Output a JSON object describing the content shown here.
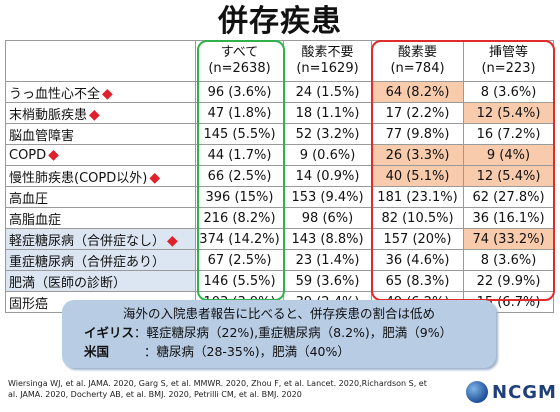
{
  "title": "併存疾患",
  "table": {
    "headers": [
      {
        "label": "すべて",
        "n": "(n=2638)"
      },
      {
        "label": "酸素不要",
        "n": "(n=1629)"
      },
      {
        "label": "酸素要",
        "n": "(n=784)"
      },
      {
        "label": "挿管等",
        "n": "(n=223)"
      }
    ],
    "rows": [
      {
        "label": "うっ血性心不全",
        "cells": [
          "96 (3.6%)",
          "24 (1.5%)",
          "64 (8.2%)",
          "8 (3.6%)"
        ]
      },
      {
        "label": "末梢動脈疾患",
        "cells": [
          "47 (1.8%)",
          "18 (1.1%)",
          "17 (2.2%)",
          "12 (5.4%)"
        ]
      },
      {
        "label": "脳血管障害",
        "cells": [
          "145 (5.5%)",
          "52 (3.2%)",
          "77 (9.8%)",
          "16 (7.2%)"
        ]
      },
      {
        "label": "COPD",
        "cells": [
          "44 (1.7%)",
          "9 (0.6%)",
          "26 (3.3%)",
          "9 (4%)"
        ]
      },
      {
        "label": "慢性肺疾患(COPD以外)",
        "cells": [
          "66 (2.5%)",
          "14 (0.9%)",
          "40 (5.1%)",
          "12 (5.4%)"
        ]
      },
      {
        "label": "高血圧",
        "cells": [
          "396 (15%)",
          "153 (9.4%)",
          "181 (23.1%)",
          "62 (27.8%)"
        ]
      },
      {
        "label": "高脂血症",
        "cells": [
          "216 (8.2%)",
          "98 (6%)",
          "82 (10.5%)",
          "36 (16.1%)"
        ]
      },
      {
        "label": "軽症糖尿病（合併症なし）",
        "cells": [
          "374 (14.2%)",
          "143 (8.8%)",
          "157 (20%)",
          "74 (33.2%)"
        ]
      },
      {
        "label": "重症糖尿病（合併症あり）",
        "cells": [
          "67 (2.5%)",
          "23 (1.4%)",
          "36 (4.6%)",
          "8 (3.6%)"
        ]
      },
      {
        "label": "肥満（医師の診断）",
        "cells": [
          "146 (5.5%)",
          "59 (3.6%)",
          "65 (8.3%)",
          "22 (9.9%)"
        ]
      },
      {
        "label": "固形癌",
        "cells": [
          "103 (3.9%)",
          "39 (2.4%)",
          "49 (6.2%)",
          "15 (6.7%)"
        ]
      }
    ],
    "marker_glyph": "◆"
  },
  "note": {
    "line1": "海外の入院患者報告に比べると、併存疾患の割合は低め",
    "line2_key": "イギリス",
    "line2_val": "：軽症糖尿病（22%),重症糖尿病（8.2%)，肥満（9%）",
    "line3_key": "米国",
    "line3_val": "：糖尿病（28-35%)，肥満（40%）"
  },
  "refs": "Wiersinga WJ, et al. JAMA. 2020, Garg S, et al. MMWR. 2020, Zhou F, et al. Lancet. 2020,Richardson S, et al. JAMA. 2020, Docherty AB, et al. BMJ. 2020, Petrilli CM, et al. BMJ. 2020",
  "logo": {
    "text": "NCGM"
  },
  "colors": {
    "highlight": "#f8cbad",
    "label_blue": "#dce6f2",
    "green_frame": "#2fb24c",
    "red_frame": "#e32a2a",
    "note_bg": "#b8cce4",
    "diamond": "#e0202a"
  }
}
